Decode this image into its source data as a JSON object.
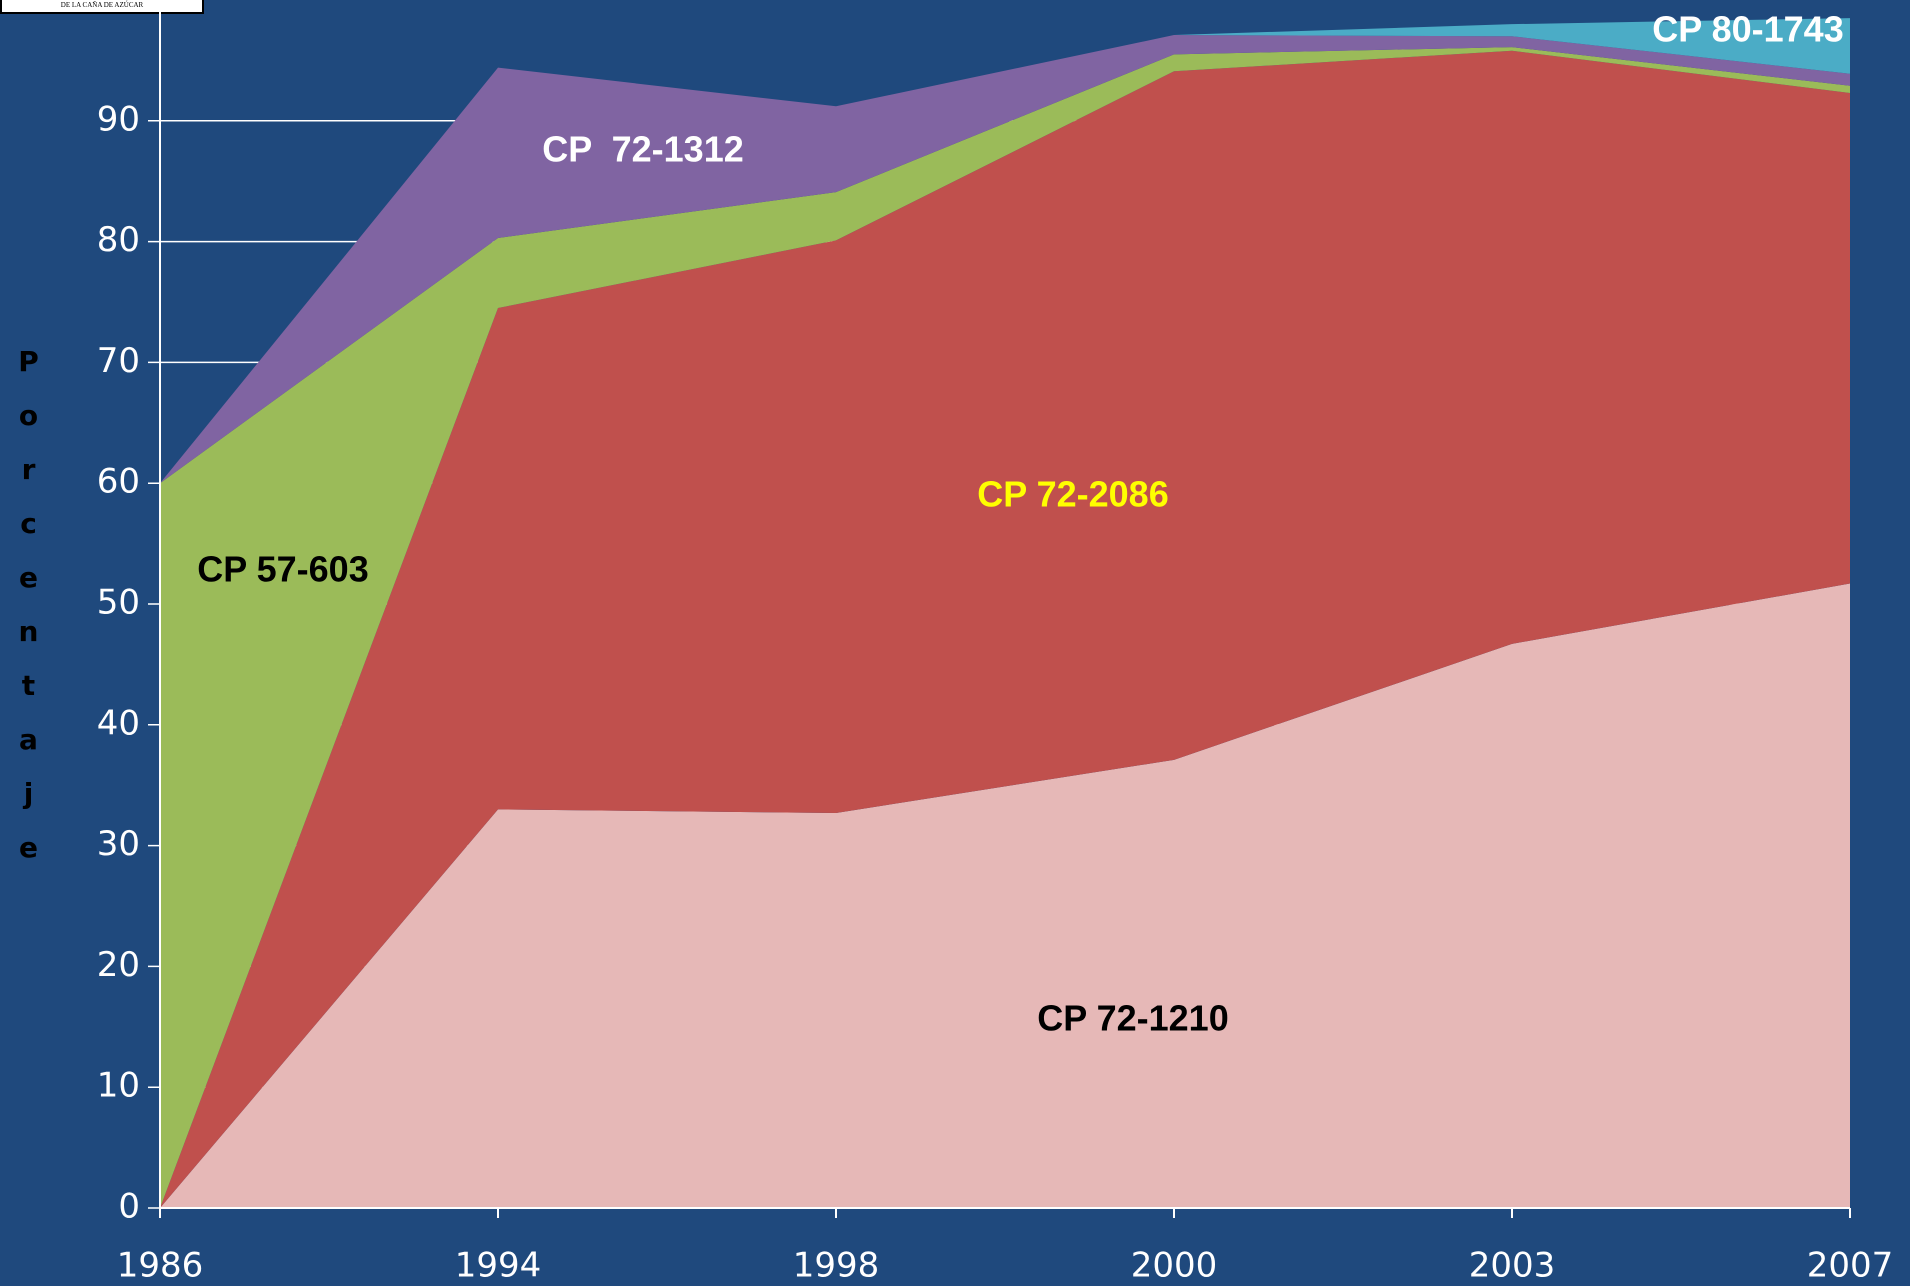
{
  "logo_text": "DE LA CAÑA DE AZÚCAR",
  "chart_data": {
    "type": "stacked_area",
    "y_axis_label": "Porcentaje",
    "categories": [
      "1986",
      "1994",
      "1998",
      "2000",
      "2003",
      "2007"
    ],
    "series": [
      {
        "name": "CP 72-1210",
        "color": "#e6b8b7",
        "values": [
          0,
          33,
          32.7,
          37.1,
          46.7,
          51.7
        ]
      },
      {
        "name": "CP 72-2086",
        "color": "#c0504d",
        "values": [
          0,
          41.5,
          47.4,
          57.0,
          49.1,
          40.6
        ]
      },
      {
        "name": "CP 57-603",
        "color": "#9bbb59",
        "values": [
          60,
          5.8,
          4.0,
          1.4,
          0.3,
          0.6
        ]
      },
      {
        "name": "CP  72-1312",
        "color": "#8064a2",
        "values": [
          0,
          14.1,
          7.1,
          1.6,
          0.9,
          1.0
        ]
      },
      {
        "name": "CP 80-1743",
        "color": "#4bacc6",
        "values": [
          0,
          0,
          0,
          0,
          1.0,
          4.6
        ]
      }
    ],
    "ylim": [
      0,
      100
    ],
    "yticks": [
      0,
      10,
      20,
      30,
      40,
      50,
      60,
      70,
      80,
      90
    ],
    "grid": true
  }
}
